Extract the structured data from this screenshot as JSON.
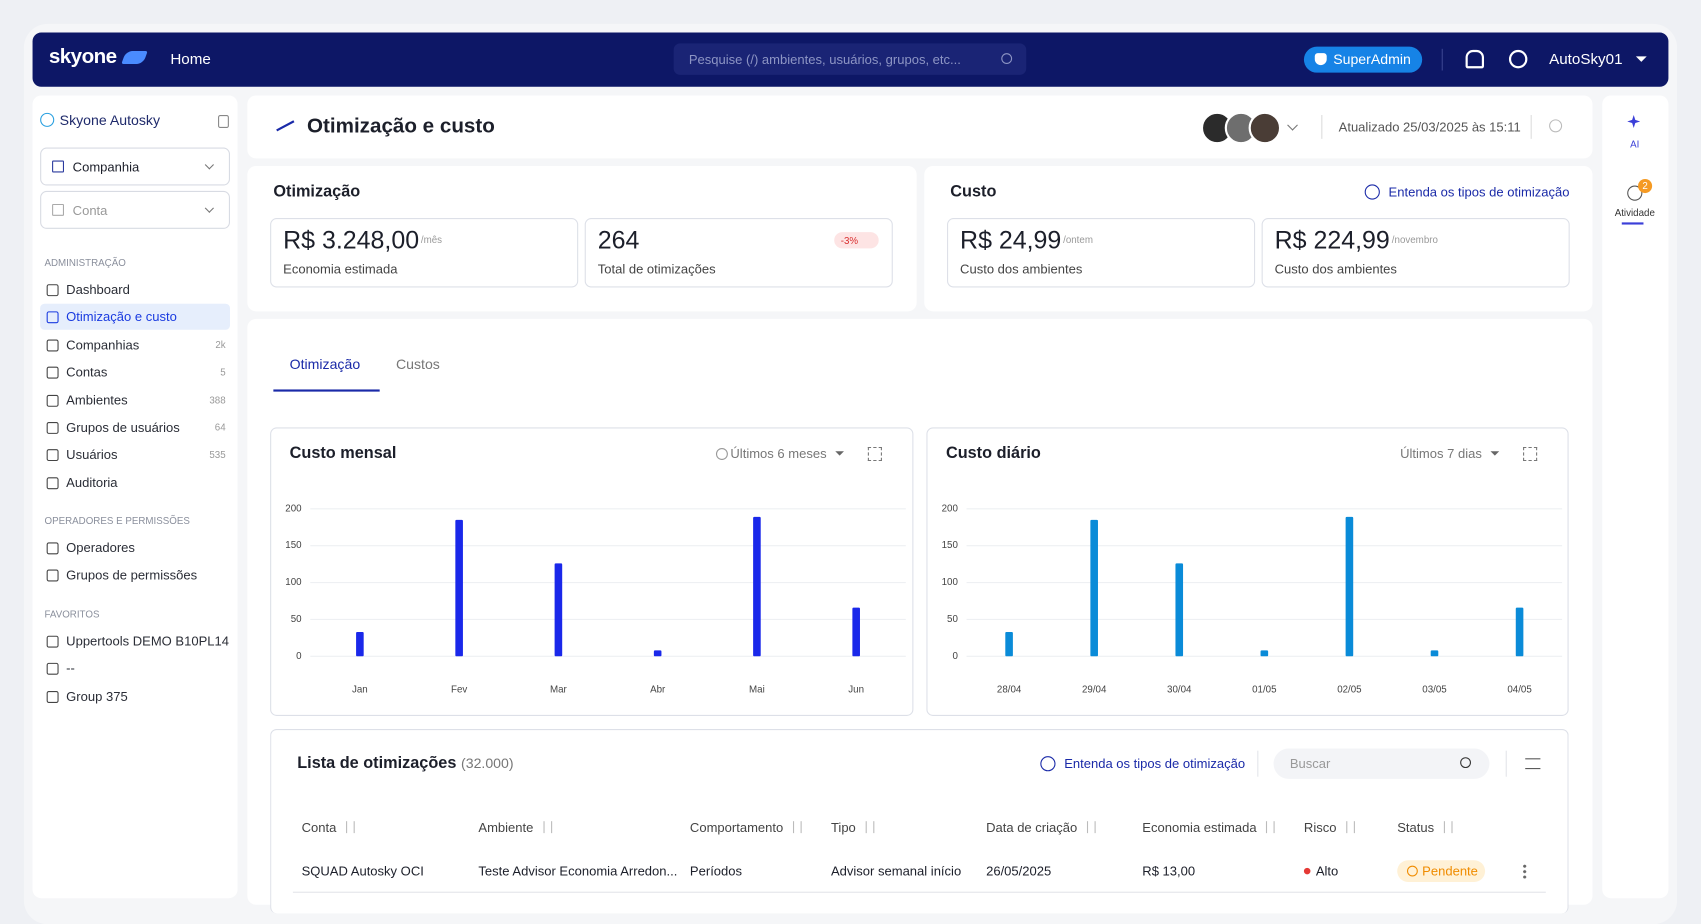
{
  "nav": {
    "brand": "skyone",
    "home": "Home",
    "search": "Pesquise (/) ambientes, usuários, grupos, etc...",
    "badge": "SuperAdmin",
    "user": "AutoSky01"
  },
  "sidebar": {
    "org": "Skyone Autosky",
    "selects": [
      "Companhia",
      "Conta"
    ],
    "sections": [
      {
        "title": "ADMINISTRAÇÃO",
        "items": [
          {
            "label": "Dashboard"
          },
          {
            "label": "Otimização e custo"
          },
          {
            "label": "Companhias",
            "count": "2k"
          },
          {
            "label": "Contas",
            "count": "5"
          },
          {
            "label": "Ambientes",
            "count": "388"
          },
          {
            "label": "Grupos de usuários",
            "count": "64"
          },
          {
            "label": "Usuários",
            "count": "535"
          },
          {
            "label": "Auditoria"
          }
        ]
      },
      {
        "title": "OPERADORES E PERMISSÕES",
        "items": [
          {
            "label": "Operadores"
          },
          {
            "label": "Grupos de permissões"
          }
        ]
      },
      {
        "title": "FAVORITOS",
        "items": [
          {
            "label": "Uppertools DEMO B10PL14"
          },
          {
            "label": "--"
          },
          {
            "label": "Group 375"
          }
        ]
      }
    ]
  },
  "header": {
    "title": "Otimização e custo",
    "updated": "Atualizado 25/03/2025 às 15:11"
  },
  "rail": {
    "items": [
      "AI",
      "Atividade"
    ],
    "badge": "2"
  },
  "optimization": {
    "title": "Otimização",
    "kpis": [
      {
        "value": "R$ 3.248,00",
        "unit": "/mês",
        "label": "Economia estimada"
      },
      {
        "value": "264",
        "label": "Total de otimizações",
        "delta": "-3%"
      }
    ]
  },
  "cost": {
    "title": "Custo",
    "link": "Entenda os tipos de otimização",
    "kpis": [
      {
        "value": "R$ 24,99",
        "unit": "/ontem",
        "label": "Custo dos ambientes"
      },
      {
        "value": "R$ 224,99",
        "unit": "/novembro",
        "label": "Custo dos ambientes"
      }
    ]
  },
  "tabs": [
    "Otimização",
    "Custos"
  ],
  "chart_data": [
    {
      "type": "bar",
      "title": "Custo mensal",
      "filter": "Últimos 6 meses",
      "color": "#1a28ea",
      "categories": [
        "Jan",
        "Fev",
        "Mar",
        "Abr",
        "Mai",
        "Jun"
      ],
      "values": [
        33,
        185,
        126,
        8,
        189,
        66
      ],
      "ylim": [
        0,
        200
      ],
      "yticks": [
        0,
        50,
        100,
        150,
        200
      ],
      "grid": true
    },
    {
      "type": "bar",
      "title": "Custo diário",
      "filter": "Últimos 7 dias",
      "color": "#0a8bd8",
      "categories": [
        "28/04",
        "29/04",
        "30/04",
        "01/05",
        "02/05",
        "03/05",
        "04/05"
      ],
      "values": [
        33,
        185,
        126,
        8,
        189,
        8,
        66
      ],
      "ylim": [
        0,
        200
      ],
      "yticks": [
        0,
        50,
        100,
        150,
        200
      ],
      "grid": true
    }
  ],
  "table": {
    "title": "Lista de otimizações",
    "count": "(32.000)",
    "link": "Entenda os tipos de otimização",
    "search": "Buscar",
    "columns": [
      "Conta",
      "Ambiente",
      "Comportamento",
      "Tipo",
      "Data de criação",
      "Economia estimada",
      "Risco",
      "Status"
    ],
    "rows": [
      [
        "SQUAD Autosky OCI",
        "Teste Advisor Economia Arredon...",
        "Períodos",
        "Advisor semanal início",
        "26/05/2025",
        "R$ 13,00",
        "Alto",
        "Pendente"
      ]
    ]
  }
}
